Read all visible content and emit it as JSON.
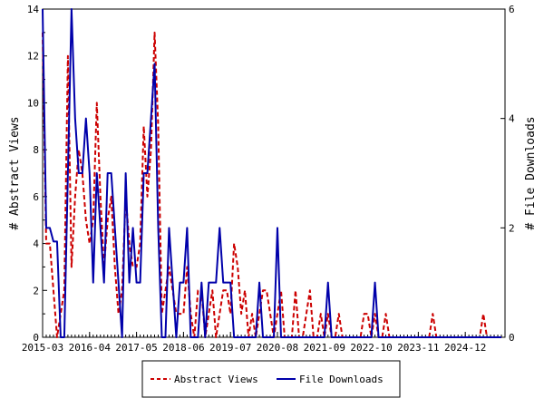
{
  "chart_data": {
    "type": "line",
    "title": "",
    "xlabel": "",
    "ylabel": "# Abstract Views",
    "y2label": "# File Downloads",
    "ylim": [
      0,
      14
    ],
    "y2lim": [
      0,
      6
    ],
    "yticks": [
      0,
      2,
      4,
      6,
      8,
      10,
      12,
      14
    ],
    "y2ticks": [
      0,
      2,
      4,
      6
    ],
    "x_range": [
      "2015-03",
      "2025-10"
    ],
    "x_tick_labels": [
      "2015-03",
      "2016-04",
      "2017-05",
      "2018-06",
      "2019-07",
      "2020-08",
      "2021-09",
      "2022-10",
      "2023-11",
      "2024-12"
    ],
    "legend_position": "bottom",
    "grid": false,
    "series": [
      {
        "name": "Abstract Views",
        "axis": "left",
        "color": "#cc0000",
        "style": "dashed",
        "points": [
          [
            "2015-03",
            13
          ],
          [
            "2015-04",
            4
          ],
          [
            "2015-05",
            4
          ],
          [
            "2015-06",
            2
          ],
          [
            "2015-07",
            0
          ],
          [
            "2015-08",
            1
          ],
          [
            "2015-09",
            2
          ],
          [
            "2015-10",
            12
          ],
          [
            "2015-11",
            3
          ],
          [
            "2015-12",
            6
          ],
          [
            "2016-01",
            8
          ],
          [
            "2016-02",
            7
          ],
          [
            "2016-03",
            5
          ],
          [
            "2016-04",
            4
          ],
          [
            "2016-05",
            5
          ],
          [
            "2016-06",
            10
          ],
          [
            "2016-07",
            6
          ],
          [
            "2016-08",
            3
          ],
          [
            "2016-09",
            5
          ],
          [
            "2016-10",
            6
          ],
          [
            "2016-11",
            3
          ],
          [
            "2016-12",
            1
          ],
          [
            "2017-01",
            2
          ],
          [
            "2017-02",
            6
          ],
          [
            "2017-03",
            4
          ],
          [
            "2017-04",
            3
          ],
          [
            "2017-05",
            3
          ],
          [
            "2017-06",
            4
          ],
          [
            "2017-07",
            9
          ],
          [
            "2017-08",
            6
          ],
          [
            "2017-09",
            8
          ],
          [
            "2017-10",
            13
          ],
          [
            "2017-11",
            9
          ],
          [
            "2017-12",
            1
          ],
          [
            "2018-01",
            2
          ],
          [
            "2018-02",
            3
          ],
          [
            "2018-03",
            2
          ],
          [
            "2018-04",
            1
          ],
          [
            "2018-05",
            1
          ],
          [
            "2018-06",
            1
          ],
          [
            "2018-07",
            3
          ],
          [
            "2018-08",
            1
          ],
          [
            "2018-09",
            0
          ],
          [
            "2018-10",
            2
          ],
          [
            "2018-11",
            2
          ],
          [
            "2018-12",
            0
          ],
          [
            "2019-01",
            1
          ],
          [
            "2019-02",
            2
          ],
          [
            "2019-03",
            0
          ],
          [
            "2019-04",
            1
          ],
          [
            "2019-05",
            2
          ],
          [
            "2019-06",
            2
          ],
          [
            "2019-07",
            1
          ],
          [
            "2019-08",
            4
          ],
          [
            "2019-09",
            3
          ],
          [
            "2019-10",
            1
          ],
          [
            "2019-11",
            2
          ],
          [
            "2019-12",
            0
          ],
          [
            "2020-01",
            1
          ],
          [
            "2020-02",
            0
          ],
          [
            "2020-03",
            1
          ],
          [
            "2020-04",
            2
          ],
          [
            "2020-05",
            2
          ],
          [
            "2020-06",
            1
          ],
          [
            "2020-07",
            0
          ],
          [
            "2020-08",
            1
          ],
          [
            "2020-09",
            2
          ],
          [
            "2020-10",
            0
          ],
          [
            "2020-11",
            0
          ],
          [
            "2020-12",
            0
          ],
          [
            "2021-01",
            2
          ],
          [
            "2021-02",
            0
          ],
          [
            "2021-03",
            0
          ],
          [
            "2021-04",
            1
          ],
          [
            "2021-05",
            2
          ],
          [
            "2021-06",
            0
          ],
          [
            "2021-07",
            0
          ],
          [
            "2021-08",
            1
          ],
          [
            "2021-09",
            0
          ],
          [
            "2021-10",
            1
          ],
          [
            "2021-11",
            0
          ],
          [
            "2021-12",
            0
          ],
          [
            "2022-01",
            1
          ],
          [
            "2022-02",
            0
          ],
          [
            "2022-03",
            0
          ],
          [
            "2022-04",
            0
          ],
          [
            "2022-05",
            0
          ],
          [
            "2022-06",
            0
          ],
          [
            "2022-07",
            0
          ],
          [
            "2022-08",
            1
          ],
          [
            "2022-09",
            1
          ],
          [
            "2022-10",
            0
          ],
          [
            "2022-11",
            1
          ],
          [
            "2022-12",
            0
          ],
          [
            "2023-01",
            0
          ],
          [
            "2023-02",
            1
          ],
          [
            "2023-03",
            0
          ],
          [
            "2023-04",
            0
          ],
          [
            "2023-05",
            0
          ],
          [
            "2023-06",
            0
          ],
          [
            "2023-07",
            0
          ],
          [
            "2023-08",
            0
          ],
          [
            "2023-09",
            0
          ],
          [
            "2023-10",
            0
          ],
          [
            "2023-11",
            0
          ],
          [
            "2023-12",
            0
          ],
          [
            "2024-01",
            0
          ],
          [
            "2024-02",
            0
          ],
          [
            "2024-03",
            1
          ],
          [
            "2024-04",
            0
          ],
          [
            "2024-05",
            0
          ],
          [
            "2024-06",
            0
          ],
          [
            "2024-07",
            0
          ],
          [
            "2024-08",
            0
          ],
          [
            "2024-09",
            0
          ],
          [
            "2024-10",
            0
          ],
          [
            "2024-11",
            0
          ],
          [
            "2024-12",
            0
          ],
          [
            "2025-01",
            0
          ],
          [
            "2025-02",
            0
          ],
          [
            "2025-03",
            0
          ],
          [
            "2025-04",
            0
          ],
          [
            "2025-05",
            1
          ],
          [
            "2025-06",
            0
          ],
          [
            "2025-07",
            0
          ],
          [
            "2025-08",
            0
          ],
          [
            "2025-09",
            0
          ],
          [
            "2025-10",
            0
          ]
        ]
      },
      {
        "name": "File Downloads",
        "axis": "right",
        "color": "#0000aa",
        "style": "solid",
        "points": [
          [
            "2015-03",
            6
          ],
          [
            "2015-04",
            2
          ],
          [
            "2015-05",
            2
          ],
          [
            "2015-06",
            1.75
          ],
          [
            "2015-07",
            1.75
          ],
          [
            "2015-08",
            0
          ],
          [
            "2015-09",
            0
          ],
          [
            "2015-10",
            3
          ],
          [
            "2015-11",
            6
          ],
          [
            "2015-12",
            4
          ],
          [
            "2016-01",
            3
          ],
          [
            "2016-02",
            3
          ],
          [
            "2016-03",
            4
          ],
          [
            "2016-04",
            3
          ],
          [
            "2016-05",
            1
          ],
          [
            "2016-06",
            3
          ],
          [
            "2016-07",
            2
          ],
          [
            "2016-08",
            1
          ],
          [
            "2016-09",
            3
          ],
          [
            "2016-10",
            3
          ],
          [
            "2016-11",
            2
          ],
          [
            "2016-12",
            1
          ],
          [
            "2017-01",
            0
          ],
          [
            "2017-02",
            3
          ],
          [
            "2017-03",
            1
          ],
          [
            "2017-04",
            2
          ],
          [
            "2017-05",
            1
          ],
          [
            "2017-06",
            1
          ],
          [
            "2017-07",
            3
          ],
          [
            "2017-08",
            3
          ],
          [
            "2017-09",
            4
          ],
          [
            "2017-10",
            5
          ],
          [
            "2017-11",
            2
          ],
          [
            "2017-12",
            0
          ],
          [
            "2018-01",
            0
          ],
          [
            "2018-02",
            2
          ],
          [
            "2018-03",
            1
          ],
          [
            "2018-04",
            0
          ],
          [
            "2018-05",
            1
          ],
          [
            "2018-06",
            1
          ],
          [
            "2018-07",
            2
          ],
          [
            "2018-08",
            0
          ],
          [
            "2018-09",
            0
          ],
          [
            "2018-10",
            0
          ],
          [
            "2018-11",
            1
          ],
          [
            "2018-12",
            0
          ],
          [
            "2019-01",
            1
          ],
          [
            "2019-02",
            1
          ],
          [
            "2019-03",
            1
          ],
          [
            "2019-04",
            2
          ],
          [
            "2019-05",
            1
          ],
          [
            "2019-06",
            1
          ],
          [
            "2019-07",
            1
          ],
          [
            "2019-08",
            0
          ],
          [
            "2019-09",
            0
          ],
          [
            "2019-10",
            0
          ],
          [
            "2019-11",
            0
          ],
          [
            "2019-12",
            0
          ],
          [
            "2020-01",
            0
          ],
          [
            "2020-02",
            0
          ],
          [
            "2020-03",
            1
          ],
          [
            "2020-04",
            0
          ],
          [
            "2020-05",
            0
          ],
          [
            "2020-06",
            0
          ],
          [
            "2020-07",
            0
          ],
          [
            "2020-08",
            2
          ],
          [
            "2020-09",
            0
          ],
          [
            "2020-10",
            0
          ],
          [
            "2020-11",
            0
          ],
          [
            "2020-12",
            0
          ],
          [
            "2021-01",
            0
          ],
          [
            "2021-02",
            0
          ],
          [
            "2021-03",
            0
          ],
          [
            "2021-04",
            0
          ],
          [
            "2021-05",
            0
          ],
          [
            "2021-06",
            0
          ],
          [
            "2021-07",
            0
          ],
          [
            "2021-08",
            0
          ],
          [
            "2021-09",
            0
          ],
          [
            "2021-10",
            1
          ],
          [
            "2021-11",
            0
          ],
          [
            "2021-12",
            0
          ],
          [
            "2022-01",
            0
          ],
          [
            "2022-02",
            0
          ],
          [
            "2022-03",
            0
          ],
          [
            "2022-04",
            0
          ],
          [
            "2022-05",
            0
          ],
          [
            "2022-06",
            0
          ],
          [
            "2022-07",
            0
          ],
          [
            "2022-08",
            0
          ],
          [
            "2022-09",
            0
          ],
          [
            "2022-10",
            0
          ],
          [
            "2022-11",
            1
          ],
          [
            "2022-12",
            0
          ],
          [
            "2023-01",
            0
          ],
          [
            "2023-02",
            0
          ],
          [
            "2023-03",
            0
          ],
          [
            "2023-04",
            0
          ],
          [
            "2023-05",
            0
          ],
          [
            "2023-06",
            0
          ],
          [
            "2023-07",
            0
          ],
          [
            "2023-08",
            0
          ],
          [
            "2023-09",
            0
          ],
          [
            "2023-10",
            0
          ],
          [
            "2023-11",
            0
          ],
          [
            "2023-12",
            0
          ],
          [
            "2024-01",
            0
          ],
          [
            "2024-02",
            0
          ],
          [
            "2024-03",
            0
          ],
          [
            "2024-04",
            0
          ],
          [
            "2024-05",
            0
          ],
          [
            "2024-06",
            0
          ],
          [
            "2024-07",
            0
          ],
          [
            "2024-08",
            0
          ],
          [
            "2024-09",
            0
          ],
          [
            "2024-10",
            0
          ],
          [
            "2024-11",
            0
          ],
          [
            "2024-12",
            0
          ],
          [
            "2025-01",
            0
          ],
          [
            "2025-02",
            0
          ],
          [
            "2025-03",
            0
          ],
          [
            "2025-04",
            0
          ],
          [
            "2025-05",
            0
          ],
          [
            "2025-06",
            0
          ],
          [
            "2025-07",
            0
          ],
          [
            "2025-08",
            0
          ],
          [
            "2025-09",
            0
          ],
          [
            "2025-10",
            0
          ]
        ]
      }
    ]
  }
}
